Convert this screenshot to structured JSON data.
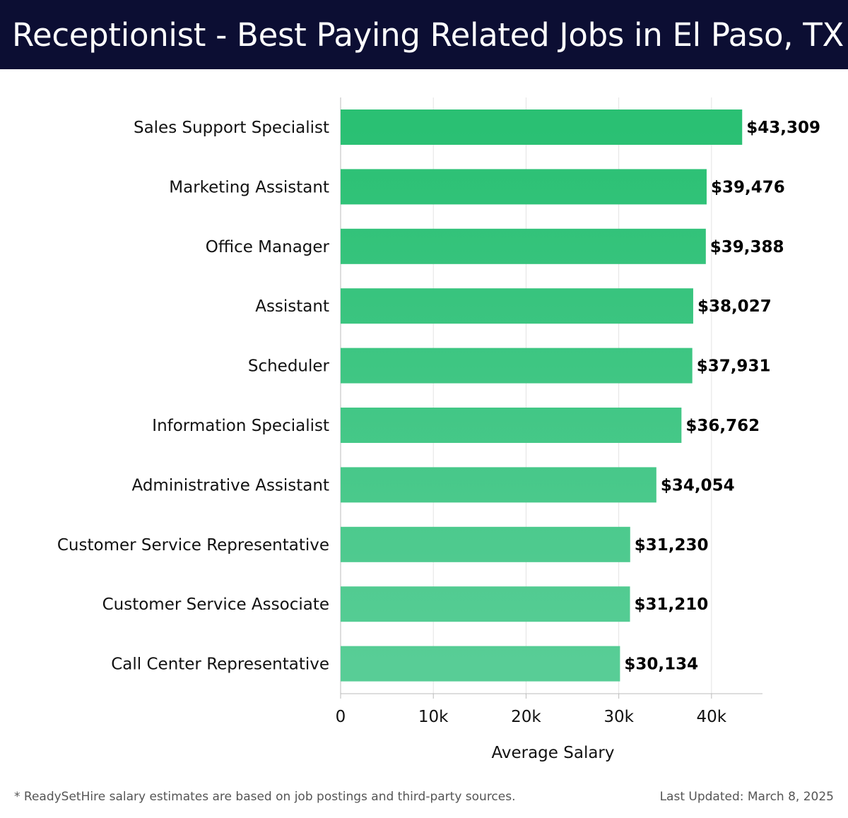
{
  "header": {
    "title": "Receptionist - Best Paying Related Jobs in El Paso, TX"
  },
  "footer": {
    "note": "* ReadySetHire salary estimates are based on job postings and third-party sources.",
    "updated": "Last Updated: March 8, 2025"
  },
  "colors": {
    "header_bg": "#0c0e33",
    "bar_top": "#2ac073",
    "bar_bottom": "#58cd96",
    "grid": "#e3e3e3",
    "axis": "#bbbbbb"
  },
  "chart_data": {
    "type": "bar",
    "orientation": "horizontal",
    "categories": [
      "Sales Support Specialist",
      "Marketing Assistant",
      "Office Manager",
      "Assistant",
      "Scheduler",
      "Information Specialist",
      "Administrative Assistant",
      "Customer Service Representative",
      "Customer Service Associate",
      "Call Center Representative"
    ],
    "values": [
      43309,
      39476,
      39388,
      38027,
      37931,
      36762,
      34054,
      31230,
      31210,
      30134
    ],
    "value_labels": [
      "$43,309",
      "$39,476",
      "$39,388",
      "$38,027",
      "$37,931",
      "$36,762",
      "$34,054",
      "$31,230",
      "$31,210",
      "$30,134"
    ],
    "xlabel": "Average Salary",
    "ylabel": "",
    "xlim": [
      0,
      45500
    ],
    "x_ticks": [
      0,
      10000,
      20000,
      30000,
      40000
    ],
    "x_tick_labels": [
      "0",
      "10k",
      "20k",
      "30k",
      "40k"
    ],
    "grid": true
  }
}
